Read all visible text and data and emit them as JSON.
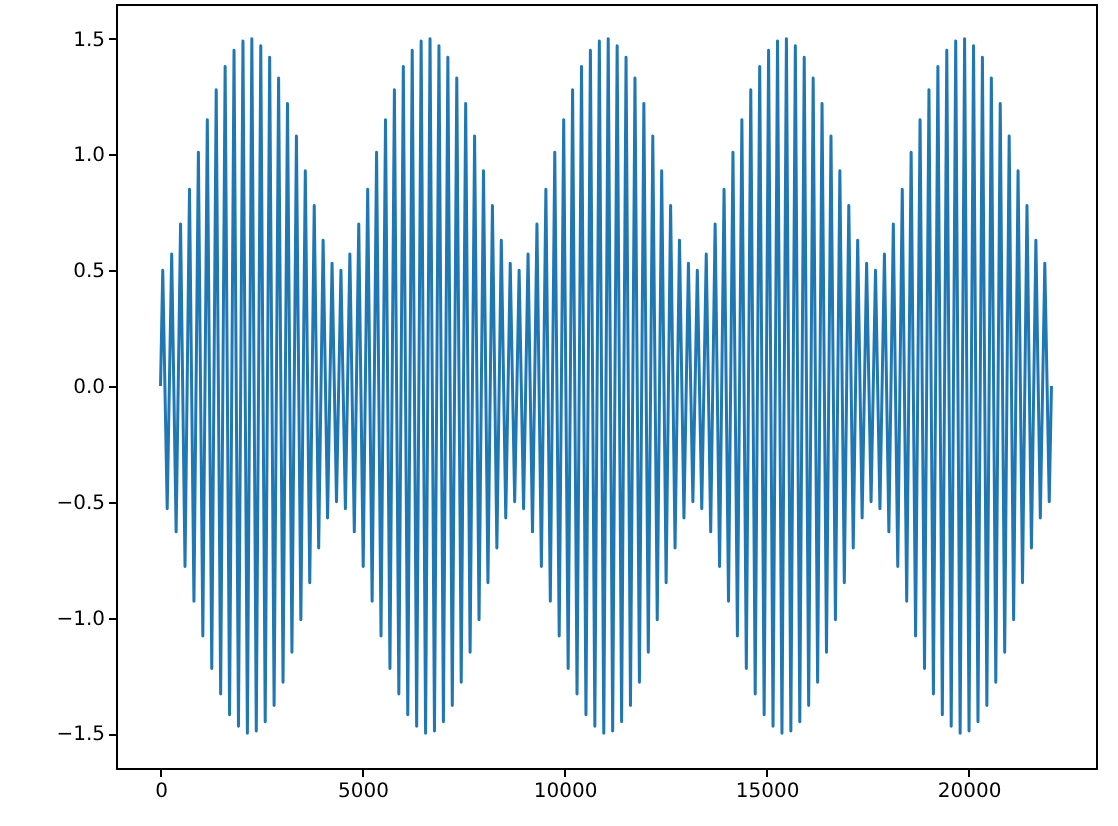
{
  "chart_data": {
    "type": "line",
    "xlim": [
      -1102,
      23152
    ],
    "ylim": [
      -1.65,
      1.65
    ],
    "xticks": [
      0,
      5000,
      10000,
      15000,
      20000
    ],
    "yticks": [
      {
        "value": -1.5,
        "label": "−1.5"
      },
      {
        "value": -1.0,
        "label": "−1.0"
      },
      {
        "value": -0.5,
        "label": "−0.5"
      },
      {
        "value": 0,
        "label": "0.0"
      },
      {
        "value": 0.5,
        "label": "0.5"
      },
      {
        "value": 1.0,
        "label": "1.0"
      },
      {
        "value": 1.5,
        "label": "1.5"
      }
    ],
    "grid": false,
    "series": [
      {
        "color": "#1f77b4",
        "x": [
          0,
          55,
          165,
          276,
          386,
          496,
          606,
          717,
          827,
          937,
          1047,
          1158,
          1268,
          1378,
          1488,
          1599,
          1709,
          1819,
          1929,
          2040,
          2150,
          2260,
          2370,
          2481,
          2591,
          2701,
          2811,
          2922,
          3032,
          3142,
          3252,
          3363,
          3473,
          3583,
          3693,
          3804,
          3914,
          4024,
          4134,
          4245,
          4355,
          4465,
          4575,
          4686,
          4796,
          4906,
          5016,
          5127,
          5237,
          5347,
          5457,
          5568,
          5678,
          5788,
          5898,
          6009,
          6119,
          6229,
          6339,
          6450,
          6560,
          6670,
          6780,
          6891,
          7001,
          7111,
          7221,
          7332,
          7442,
          7552,
          7662,
          7773,
          7883,
          7993,
          8103,
          8214,
          8324,
          8434,
          8544,
          8655,
          8765,
          8875,
          8985,
          9096,
          9206,
          9316,
          9426,
          9537,
          9647,
          9757,
          9867,
          9978,
          10088,
          10198,
          10308,
          10419,
          10529,
          10639,
          10749,
          10860,
          10970,
          11080,
          11190,
          11301,
          11411,
          11521,
          11631,
          11742,
          11852,
          11962,
          12072,
          12183,
          12293,
          12403,
          12513,
          12624,
          12734,
          12844,
          12954,
          13065,
          13175,
          13285,
          13395,
          13506,
          13616,
          13726,
          13836,
          13947,
          14057,
          14167,
          14277,
          14388,
          14498,
          14608,
          14718,
          14829,
          14939,
          15049,
          15159,
          15270,
          15380,
          15490,
          15600,
          15711,
          15821,
          15931,
          16041,
          16152,
          16262,
          16372,
          16482,
          16593,
          16703,
          16813,
          16923,
          17034,
          17144,
          17254,
          17364,
          17475,
          17585,
          17695,
          17805,
          17916,
          18026,
          18136,
          18246,
          18357,
          18467,
          18577,
          18687,
          18798,
          18908,
          19018,
          19128,
          19239,
          19349,
          19459,
          19569,
          19680,
          19790,
          19900,
          20010,
          20121,
          20231,
          20341,
          20451,
          20562,
          20672,
          20782,
          20892,
          21003,
          21113,
          21223,
          21333,
          21444,
          21554,
          21664,
          21774,
          21885,
          21995,
          22050
        ],
        "values": [
          0,
          0.5,
          -0.53,
          0.57,
          -0.63,
          0.7,
          -0.78,
          0.85,
          -0.93,
          1.01,
          -1.08,
          1.15,
          -1.22,
          1.28,
          -1.33,
          1.38,
          -1.42,
          1.45,
          -1.47,
          1.49,
          -1.5,
          1.5,
          -1.49,
          1.47,
          -1.45,
          1.42,
          -1.38,
          1.33,
          -1.28,
          1.22,
          -1.15,
          1.08,
          -1.01,
          0.93,
          -0.85,
          0.78,
          -0.7,
          0.63,
          -0.57,
          0.53,
          -0.5,
          0.5,
          -0.53,
          0.57,
          -0.63,
          0.7,
          -0.78,
          0.85,
          -0.93,
          1.01,
          -1.08,
          1.15,
          -1.22,
          1.28,
          -1.33,
          1.38,
          -1.42,
          1.45,
          -1.47,
          1.49,
          -1.5,
          1.5,
          -1.49,
          1.47,
          -1.45,
          1.42,
          -1.38,
          1.33,
          -1.28,
          1.22,
          -1.15,
          1.08,
          -1.01,
          0.93,
          -0.85,
          0.78,
          -0.7,
          0.63,
          -0.57,
          0.53,
          -0.5,
          0.5,
          -0.53,
          0.57,
          -0.63,
          0.7,
          -0.78,
          0.85,
          -0.93,
          1.01,
          -1.08,
          1.15,
          -1.22,
          1.28,
          -1.33,
          1.38,
          -1.42,
          1.45,
          -1.47,
          1.49,
          -1.5,
          1.5,
          -1.49,
          1.47,
          -1.45,
          1.42,
          -1.38,
          1.33,
          -1.28,
          1.22,
          -1.15,
          1.08,
          -1.01,
          0.93,
          -0.85,
          0.78,
          -0.7,
          0.63,
          -0.57,
          0.53,
          -0.5,
          0.5,
          -0.53,
          0.57,
          -0.63,
          0.7,
          -0.78,
          0.85,
          -0.93,
          1.01,
          -1.08,
          1.15,
          -1.22,
          1.28,
          -1.33,
          1.38,
          -1.42,
          1.45,
          -1.47,
          1.49,
          -1.5,
          1.5,
          -1.49,
          1.47,
          -1.45,
          1.42,
          -1.38,
          1.33,
          -1.28,
          1.22,
          -1.15,
          1.08,
          -1.01,
          0.93,
          -0.85,
          0.78,
          -0.7,
          0.63,
          -0.57,
          0.53,
          -0.5,
          0.5,
          -0.53,
          0.57,
          -0.63,
          0.7,
          -0.78,
          0.85,
          -0.93,
          1.01,
          -1.08,
          1.15,
          -1.22,
          1.28,
          -1.33,
          1.38,
          -1.42,
          1.45,
          -1.47,
          1.49,
          -1.5,
          1.5,
          -1.49,
          1.47,
          -1.45,
          1.42,
          -1.38,
          1.33,
          -1.28,
          1.22,
          -1.15,
          1.08,
          -1.01,
          0.93,
          -0.85,
          0.78,
          -0.7,
          0.63,
          -0.57,
          0.53,
          -0.5,
          0
        ]
      }
    ]
  }
}
